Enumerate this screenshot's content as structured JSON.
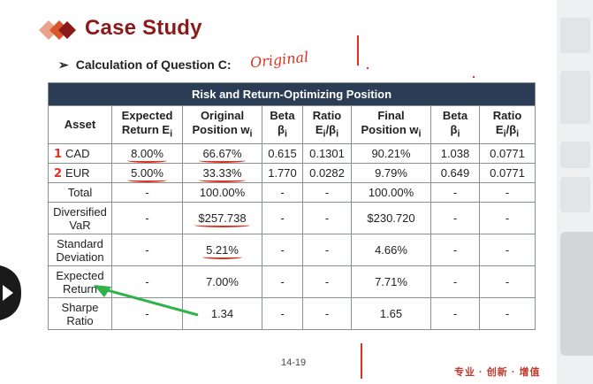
{
  "slide": {
    "title": "Case Study",
    "subtitle": "Calculation of Question C:",
    "handwritten_note": "Original",
    "page_number": "14-19",
    "footer": "专业 · 创新 · 增值"
  },
  "table": {
    "banner": "Risk and Return-Optimizing Position",
    "headers": [
      {
        "line1": "Asset",
        "line2": ""
      },
      {
        "line1": "Expected",
        "line2": "Return E",
        "sub": "i"
      },
      {
        "line1": "Original",
        "line2": "Position w",
        "sub": "i"
      },
      {
        "line1": "Beta",
        "line2": "β",
        "sub": "i"
      },
      {
        "line1": "Ratio",
        "line2": "E",
        "sub": "i",
        "tail": "/β",
        "tailsub": "i"
      },
      {
        "line1": "Final",
        "line2": "Position w",
        "sub": "i"
      },
      {
        "line1": "Beta",
        "line2": "β",
        "sub": "i"
      },
      {
        "line1": "Ratio",
        "line2": "E",
        "sub": "i",
        "tail": "/β",
        "tailsub": "i"
      }
    ],
    "rows": [
      {
        "asset": "CAD",
        "marker": "1",
        "cells": [
          "8.00%",
          "66.67%",
          "0.615",
          "0.1301",
          "90.21%",
          "1.038",
          "0.0771"
        ]
      },
      {
        "asset": "EUR",
        "marker": "2",
        "cells": [
          "5.00%",
          "33.33%",
          "1.770",
          "0.0282",
          "9.79%",
          "0.649",
          "0.0771"
        ]
      },
      {
        "asset": "Total",
        "cells": [
          "-",
          "100.00%",
          "-",
          "-",
          "100.00%",
          "-",
          "-"
        ]
      },
      {
        "asset_line1": "Diversified",
        "asset_line2": "VaR",
        "cells": [
          "-",
          "$257.738",
          "-",
          "-",
          "$230.720",
          "-",
          "-"
        ]
      },
      {
        "asset_line1": "Standard",
        "asset_line2": "Deviation",
        "cells": [
          "-",
          "5.21%",
          "-",
          "-",
          "4.66%",
          "-",
          "-"
        ]
      },
      {
        "asset_line1": "Expected",
        "asset_line2": "Return",
        "cells": [
          "-",
          "7.00%",
          "-",
          "-",
          "7.71%",
          "-",
          "-"
        ]
      },
      {
        "asset_line1": "Sharpe",
        "asset_line2": "Ratio",
        "cells": [
          "-",
          "1.34",
          "-",
          "-",
          "1.65",
          "-",
          "-"
        ]
      }
    ]
  },
  "colors": {
    "title": "#8b1a1a",
    "banner_bg": "#2b3d55",
    "annotation_red": "#e0301e",
    "annotation_green": "#2fb34a"
  },
  "icons": {
    "logo": "double-diamond-logo",
    "play": "play-icon",
    "pointer": "green-arrow-annotation"
  }
}
